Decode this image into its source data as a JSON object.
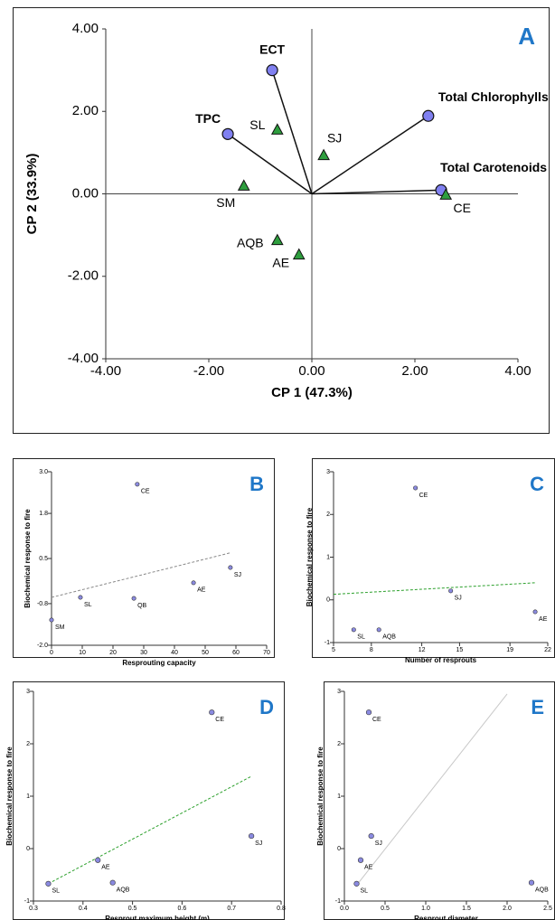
{
  "chart_data": [
    {
      "type": "biplot",
      "panel_label": "A",
      "xlabel": "CP 1 (47.3%)",
      "ylabel": "CP 2 (33.9%)",
      "xlim": [
        -4,
        4
      ],
      "ylim": [
        -4,
        4
      ],
      "xticks": [
        {
          "value": -4,
          "label": "-4.00"
        },
        {
          "value": -2,
          "label": "-2.00"
        },
        {
          "value": 0,
          "label": "0.00"
        },
        {
          "value": 2,
          "label": "2.00"
        },
        {
          "value": 4,
          "label": "4.00"
        }
      ],
      "yticks": [
        {
          "value": -4,
          "label": "-4.00"
        },
        {
          "value": -2,
          "label": "-2.00"
        },
        {
          "value": 0,
          "label": "0.00"
        },
        {
          "value": 2,
          "label": "2.00"
        },
        {
          "value": 4,
          "label": "4.00"
        }
      ],
      "loadings": {
        "color": "#8080f0",
        "labels": [
          "ECT",
          "TPC",
          "Total Chlorophylls",
          "Total Carotenoids"
        ],
        "x": [
          -0.77,
          -1.63,
          2.26,
          2.51
        ],
        "y": [
          3.0,
          1.45,
          1.89,
          0.09
        ]
      },
      "scores": {
        "color": "#2e9e3e",
        "labels": [
          "SL",
          "SJ",
          "SM",
          "CE",
          "AQB",
          "AE"
        ],
        "x": [
          -0.67,
          0.23,
          -1.32,
          2.6,
          -0.67,
          -0.25
        ],
        "y": [
          1.56,
          0.94,
          0.2,
          -0.02,
          -1.12,
          -1.47
        ]
      }
    },
    {
      "type": "scatter",
      "panel_label": "B",
      "xlabel": "Resprouting capacity",
      "ylabel": "Biochemical response to fire",
      "xlim": [
        0,
        70
      ],
      "ylim": [
        -2,
        3
      ],
      "xticks": [
        0,
        10,
        20,
        30,
        40,
        50,
        60,
        70
      ],
      "yticks": [
        {
          "value": -2,
          "label": "-2.0"
        },
        -0.8,
        0.5,
        1.8,
        {
          "value": 3,
          "label": "3.0"
        }
      ],
      "points": {
        "color": "#8a8ae0",
        "labels": [
          "CE",
          "SJ",
          "AE",
          "SL",
          "QB",
          "SM"
        ],
        "x": [
          27.9,
          58.2,
          46.2,
          9.4,
          26.8,
          0
        ],
        "y": [
          2.64,
          0.24,
          -0.2,
          -0.62,
          -0.65,
          -1.27
        ]
      },
      "trend": {
        "color": "#888888",
        "dashed": true,
        "x": [
          0,
          58
        ],
        "y": [
          -0.62,
          0.66
        ]
      }
    },
    {
      "type": "scatter",
      "panel_label": "C",
      "xlabel": "Number of resprouts",
      "ylabel": "Biochemical response to fire",
      "xlim": [
        5,
        22
      ],
      "ylim": [
        -1,
        3
      ],
      "xticks": [
        5,
        8,
        12,
        15,
        19,
        22
      ],
      "yticks": [
        -1,
        0,
        1,
        2,
        3
      ],
      "points": {
        "color": "#8a8ae0",
        "labels": [
          "CE",
          "SJ",
          "AE",
          "SL",
          "AQB"
        ],
        "x": [
          11.5,
          14.3,
          21,
          6.6,
          8.6
        ],
        "y": [
          2.62,
          0.21,
          -0.28,
          -0.7,
          -0.7
        ]
      },
      "trend": {
        "color": "#2ca02c",
        "dashed": true,
        "x": [
          5,
          21
        ],
        "y": [
          0.13,
          0.4
        ]
      }
    },
    {
      "type": "scatter",
      "panel_label": "D",
      "xlabel": "Resprout maximum height (m)",
      "ylabel": "Biochemical response to fire",
      "xlim": [
        0.3,
        0.8
      ],
      "ylim": [
        -1,
        3
      ],
      "xticks": [
        0.3,
        0.4,
        0.5,
        0.6,
        0.7,
        0.8
      ],
      "yticks": [
        -1,
        0,
        1,
        2,
        3
      ],
      "points": {
        "color": "#8a8ae0",
        "labels": [
          "CE",
          "SJ",
          "AE",
          "SL",
          "AQB"
        ],
        "x": [
          0.66,
          0.74,
          0.43,
          0.33,
          0.46
        ],
        "y": [
          2.6,
          0.24,
          -0.22,
          -0.67,
          -0.65
        ]
      },
      "trend": {
        "color": "#2ca02c",
        "dashed": true,
        "x": [
          0.33,
          0.74
        ],
        "y": [
          -0.67,
          1.38
        ]
      }
    },
    {
      "type": "scatter",
      "panel_label": "E",
      "xlabel": "Resprout diameter",
      "ylabel": "Biochemical response to fire",
      "xlim": [
        0,
        2.5
      ],
      "ylim": [
        -1,
        3
      ],
      "xticks": [
        {
          "value": 0,
          "label": "0.0"
        },
        0.5,
        {
          "value": 1,
          "label": "1.0"
        },
        1.5,
        {
          "value": 2,
          "label": "2.0"
        },
        2.5
      ],
      "yticks": [
        -1,
        0,
        1,
        2,
        3
      ],
      "points": {
        "color": "#8a8ae0",
        "labels": [
          "CE",
          "SJ",
          "AE",
          "SL",
          "AQB"
        ],
        "x": [
          0.3,
          0.33,
          0.2,
          0.15,
          2.3
        ],
        "y": [
          2.6,
          0.24,
          -0.22,
          -0.67,
          -0.65
        ]
      },
      "trend": {
        "color": "#c8c8c8",
        "dashed": false,
        "x": [
          0.15,
          2.0
        ],
        "y": [
          -0.7,
          2.95
        ]
      }
    }
  ]
}
